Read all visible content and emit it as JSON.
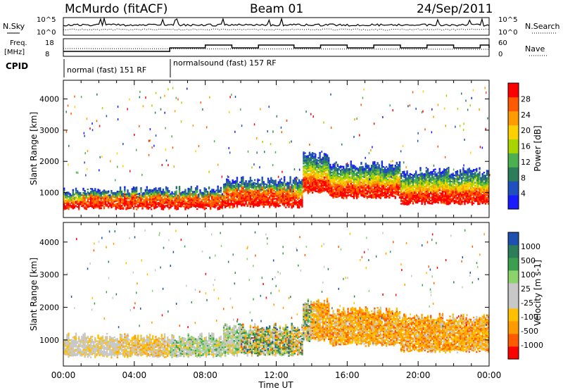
{
  "header": {
    "station": "McMurdo (fitACF)",
    "beam": "Beam 01",
    "date": "24/Sep/2011"
  },
  "noise_panel": {
    "left_label": "N.Sky",
    "right_label": "N.Search",
    "left_ticks": [
      "10^5",
      "10^0"
    ],
    "right_ticks": [
      "10^5",
      "10^0"
    ]
  },
  "freq_panel": {
    "left_label_1": "Freq.",
    "left_label_2": "[MHz]",
    "left_ticks": [
      "18",
      "8"
    ],
    "right_ticks": [
      "60",
      "0"
    ],
    "right_label": "Nave"
  },
  "cpid_panel": {
    "label": "CPID",
    "segments": [
      {
        "text": "normal (fast) 151 RF",
        "start_hour": 0,
        "end_hour": 6
      },
      {
        "text": "normalsound (fast) 157 RF",
        "start_hour": 6,
        "end_hour": 24
      }
    ]
  },
  "colors": {
    "power": [
      "#1a1aff",
      "#2050c0",
      "#2e7d5a",
      "#4caf50",
      "#a8d400",
      "#ffd000",
      "#ff9a00",
      "#ff5a00",
      "#ff0000"
    ],
    "velocity": [
      "#ff0000",
      "#ff5a00",
      "#ff9a00",
      "#ffc000",
      "#c8c8c8",
      "#c8c8c8",
      "#8bd36a",
      "#3aa050",
      "#2e7d5a",
      "#1e50b0"
    ]
  },
  "chart_data": [
    {
      "type": "heatmap",
      "name": "Power",
      "ylabel": "Slant Range [km]",
      "xlabel": "",
      "x_ticks": [
        "00:00",
        "04:00",
        "08:00",
        "12:00",
        "16:00",
        "20:00",
        "00:00"
      ],
      "y_ticks": [
        1000,
        2000,
        3000,
        4000
      ],
      "ylim": [
        200,
        4600
      ],
      "colorbar": {
        "label": "Power [dB]",
        "ticks": [
          4,
          8,
          12,
          16,
          20,
          24,
          28
        ]
      },
      "echo_bands": [
        {
          "hour_start": 0,
          "hour_end": 3,
          "range_low": 500,
          "range_high": 1050
        },
        {
          "hour_start": 3,
          "hour_end": 9,
          "range_low": 500,
          "range_high": 1100
        },
        {
          "hour_start": 9,
          "hour_end": 13.5,
          "range_low": 550,
          "range_high": 1400
        },
        {
          "hour_start": 13.5,
          "hour_end": 15,
          "range_low": 1000,
          "range_high": 2200
        },
        {
          "hour_start": 15,
          "hour_end": 19,
          "range_low": 850,
          "range_high": 1900
        },
        {
          "hour_start": 19,
          "hour_end": 24,
          "range_low": 650,
          "range_high": 1700
        }
      ]
    },
    {
      "type": "heatmap",
      "name": "Velocity",
      "ylabel": "Slant Range [km]",
      "xlabel": "Time UT",
      "x_ticks": [
        "00:00",
        "04:00",
        "08:00",
        "12:00",
        "16:00",
        "20:00",
        "00:00"
      ],
      "y_ticks": [
        1000,
        2000,
        3000,
        4000
      ],
      "ylim": [
        200,
        4600
      ],
      "colorbar": {
        "label": "Velocity [m s-1]",
        "ticks": [
          -1000,
          -500,
          -100,
          -25,
          25,
          100,
          500,
          1000
        ]
      },
      "echo_bands": [
        {
          "hour_start": 0,
          "hour_end": 3,
          "range_low": 500,
          "range_high": 1100
        },
        {
          "hour_start": 3,
          "hour_end": 9,
          "range_low": 500,
          "range_high": 1100
        },
        {
          "hour_start": 9,
          "hour_end": 13.5,
          "range_low": 550,
          "range_high": 1400
        },
        {
          "hour_start": 13.5,
          "hour_end": 15,
          "range_low": 1000,
          "range_high": 2200
        },
        {
          "hour_start": 15,
          "hour_end": 19,
          "range_low": 850,
          "range_high": 1900
        },
        {
          "hour_start": 19,
          "hour_end": 24,
          "range_low": 650,
          "range_high": 1700
        }
      ]
    }
  ]
}
